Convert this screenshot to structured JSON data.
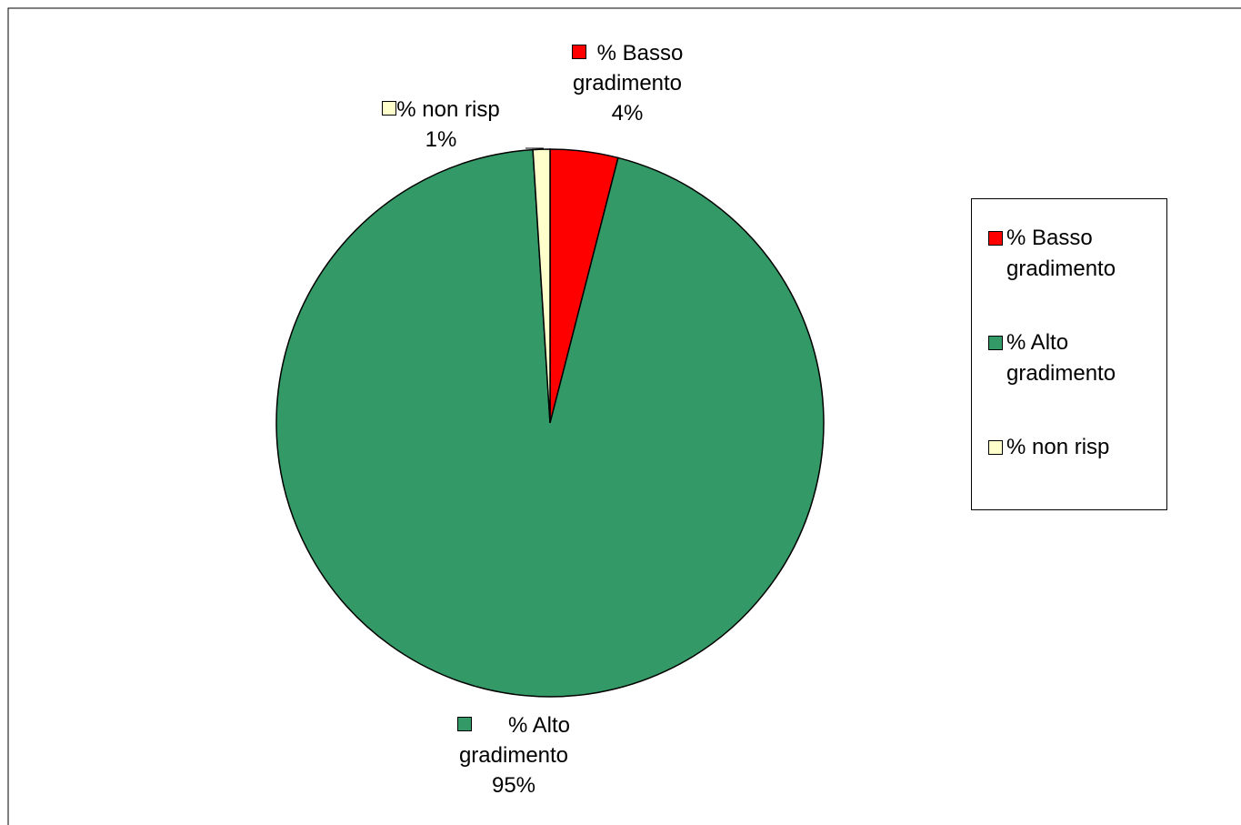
{
  "chart_data": {
    "type": "pie",
    "categories": [
      "% Basso gradimento",
      "% Alto gradimento",
      "% non risp"
    ],
    "values": [
      4,
      95,
      1
    ],
    "value_labels": [
      "4%",
      "95%",
      "1%"
    ],
    "colors": [
      "#ff0000",
      "#339966",
      "#ffffcc"
    ],
    "legend": "right"
  }
}
